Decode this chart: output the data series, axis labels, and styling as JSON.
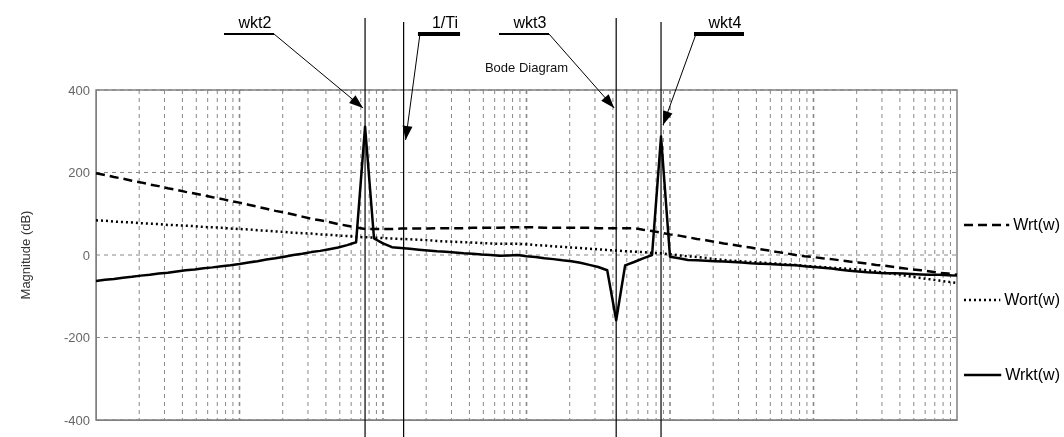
{
  "chart_data": {
    "type": "line",
    "title": "Bode Diagram",
    "ylabel": "Magnitude (dB)",
    "categories": [
      null,
      null,
      null,
      null,
      null,
      null,
      null,
      null,
      null,
      null,
      null,
      null,
      null,
      null,
      null,
      null,
      null,
      null,
      null,
      null,
      null,
      null,
      null,
      null,
      null,
      null,
      null,
      null,
      null,
      null,
      null,
      null,
      null,
      null,
      null,
      null,
      null,
      null,
      null,
      null,
      null,
      null,
      null,
      null,
      null,
      null,
      null,
      null,
      null,
      null,
      null,
      null,
      null,
      null,
      null,
      null,
      null,
      null,
      null,
      null,
      null,
      null,
      null,
      null,
      null,
      null,
      null,
      null,
      null,
      null,
      null,
      null,
      null,
      null,
      null,
      null,
      null,
      null,
      null,
      null,
      null,
      null,
      null,
      null,
      null,
      null,
      null,
      null,
      null,
      null,
      null,
      null,
      null,
      null,
      null,
      null,
      null
    ],
    "ylim": [
      -400,
      400
    ],
    "yticks": [
      -400,
      -200,
      0,
      200,
      400
    ],
    "grid": true,
    "legend": "right",
    "series": [
      {
        "name": "Wrt(w)",
        "color": "#000000",
        "line_style": "dashed",
        "values": [
          198,
          194,
          189,
          185,
          180,
          176,
          171,
          167,
          162,
          158,
          153,
          149,
          145,
          140,
          136,
          131,
          127,
          122,
          117,
          112,
          107,
          103,
          98,
          93,
          88,
          84,
          80,
          75,
          71,
          67,
          63,
          63,
          63,
          63,
          64,
          64,
          64,
          64,
          65,
          65,
          65,
          65,
          66,
          66,
          66,
          66,
          67,
          67,
          67,
          67,
          66,
          66,
          66,
          66,
          66,
          66,
          65,
          65,
          65,
          65,
          65,
          61,
          58,
          54,
          50,
          47,
          43,
          39,
          36,
          32,
          28,
          25,
          21,
          18,
          14,
          11,
          7,
          4,
          0,
          -3,
          -5,
          -8,
          -10,
          -13,
          -16,
          -18,
          -21,
          -24,
          -26,
          -29,
          -32,
          -35,
          -37,
          -40,
          -43,
          -45,
          -48
        ]
      },
      {
        "name": "Wort(w)",
        "color": "#000000",
        "line_style": "dotted",
        "values": [
          84,
          83,
          81,
          80,
          79,
          77,
          76,
          75,
          73,
          72,
          71,
          70,
          68,
          67,
          66,
          64,
          63,
          62,
          60,
          59,
          57,
          56,
          54,
          53,
          52,
          50,
          49,
          47,
          46,
          44,
          43,
          42,
          41,
          40,
          39,
          38,
          37,
          36,
          34,
          33,
          32,
          31,
          30,
          29,
          28,
          27,
          27,
          27,
          26,
          24,
          23,
          21,
          20,
          18,
          17,
          15,
          14,
          12,
          11,
          9,
          8,
          7,
          5,
          4,
          2,
          -1,
          -3,
          -5,
          -7,
          -10,
          -12,
          -14,
          -15,
          -17,
          -18,
          -20,
          -21,
          -23,
          -24,
          -26,
          -28,
          -29,
          -31,
          -32,
          -34,
          -35,
          -37,
          -40,
          -43,
          -46,
          -49,
          -53,
          -56,
          -59,
          -62,
          -65,
          -68
        ]
      },
      {
        "name": "Wrkt(w)",
        "color": "#000000",
        "line_style": "solid",
        "values": [
          -63,
          -60,
          -58,
          -55,
          -53,
          -50,
          -48,
          -45,
          -43,
          -40,
          -37,
          -35,
          -32,
          -30,
          -27,
          -25,
          -22,
          -18,
          -15,
          -11,
          -8,
          -4,
          0,
          3,
          7,
          10,
          14,
          18,
          24,
          31,
          311,
          40,
          28,
          19,
          17,
          15,
          13,
          11,
          9,
          8,
          6,
          4,
          3,
          1,
          0,
          -2,
          -1,
          0,
          -3,
          -5,
          -8,
          -10,
          -13,
          -15,
          -19,
          -24,
          -29,
          -37,
          -158,
          -25,
          -17,
          -8,
          0,
          287,
          -4,
          -8,
          -12,
          -13,
          -14,
          -15,
          -16,
          -17,
          -18,
          -20,
          -21,
          -22,
          -23,
          -24,
          -25,
          -27,
          -29,
          -31,
          -33,
          -36,
          -38,
          -40,
          -42,
          -43,
          -44,
          -44,
          -45,
          -46,
          -47,
          -48,
          -48,
          -49,
          -50
        ]
      }
    ],
    "annotations": [
      "wkt2",
      "1/Ti",
      "wkt3",
      "wkt4"
    ]
  }
}
